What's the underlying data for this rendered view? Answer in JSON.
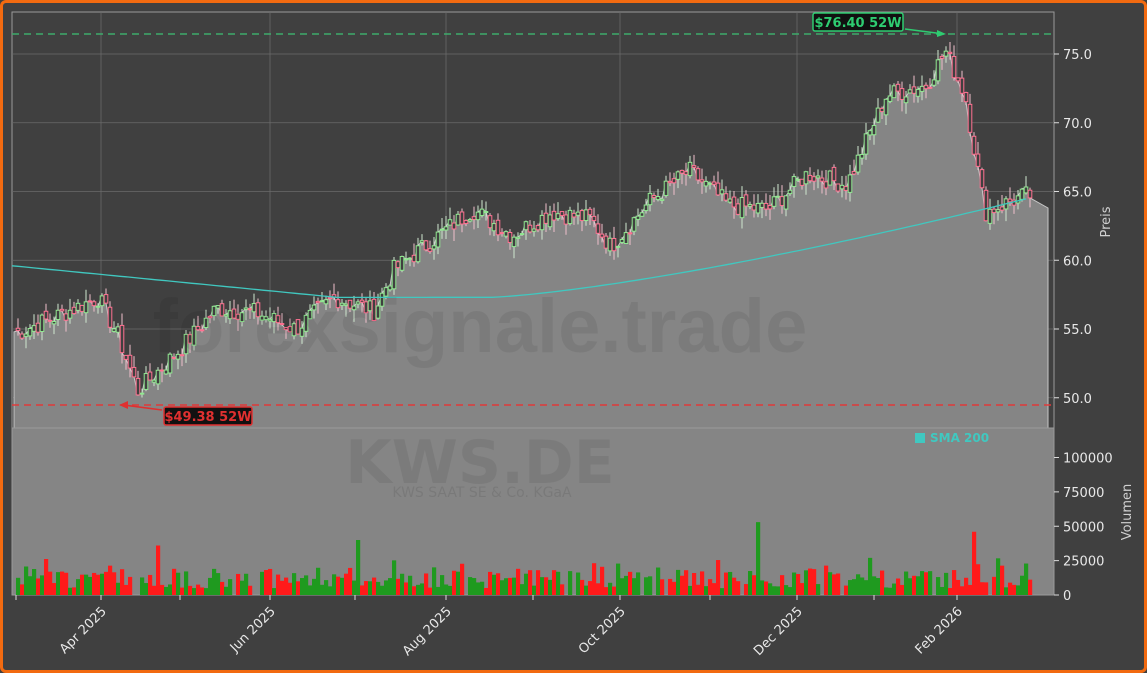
{
  "chart_data": [
    {
      "type": "candlestick",
      "title": "",
      "ticker": "KWS.DE",
      "company": "KWS SAAT SE & Co. KGaA",
      "watermark": "forexsignale.trade",
      "xlabel": "",
      "ylabel": "Preis",
      "ylim": [
        47.8,
        77.7
      ],
      "yticks": [
        "50.0",
        "55.0",
        "60.0",
        "65.0",
        "70.0",
        "75.0"
      ],
      "x_tick_labels": [
        "Apr 2025",
        "Jun 2025",
        "Aug 2025",
        "Oct 2025",
        "Dec 2025",
        "Feb 2026"
      ],
      "grid": true,
      "annotations": [
        {
          "label": "$76.40 52W",
          "value": 76.4,
          "type": "52-week high",
          "color": "#2ecc71"
        },
        {
          "label": "$49.38 52W",
          "value": 49.38,
          "type": "52-week low",
          "color": "#e03030"
        }
      ],
      "legend": [
        {
          "name": "SMA 200",
          "color": "#40c8c0"
        }
      ],
      "approx_close_series": {
        "dates": [
          "2025-03-03",
          "2025-03-17",
          "2025-03-31",
          "2025-04-07",
          "2025-04-14",
          "2025-04-28",
          "2025-05-12",
          "2025-05-26",
          "2025-06-09",
          "2025-06-23",
          "2025-07-07",
          "2025-07-14",
          "2025-07-28",
          "2025-08-11",
          "2025-08-25",
          "2025-09-08",
          "2025-09-22",
          "2025-09-29",
          "2025-10-13",
          "2025-10-27",
          "2025-11-10",
          "2025-11-24",
          "2025-12-08",
          "2025-12-22",
          "2026-01-05",
          "2026-01-19",
          "2026-01-26",
          "2026-02-02",
          "2026-02-09",
          "2026-02-23"
        ],
        "values": [
          54.8,
          56.0,
          57.3,
          54.5,
          50.5,
          53.3,
          56.5,
          56.2,
          55.0,
          57.3,
          56.3,
          59.3,
          61.5,
          63.7,
          61.8,
          63.5,
          63.0,
          61.0,
          64.3,
          66.5,
          64.0,
          63.7,
          66.3,
          65.5,
          72.0,
          72.7,
          75.2,
          72.0,
          63.5,
          64.7
        ]
      },
      "sma200": {
        "start": 59.6,
        "min": 57.3,
        "end": 64.5
      }
    },
    {
      "type": "bar",
      "title": "",
      "ylabel": "Volumen",
      "ylim": [
        0,
        120000
      ],
      "yticks": [
        "0",
        "25000",
        "50000",
        "75000",
        "100000"
      ],
      "colors": {
        "up": "#1f9a1f",
        "down": "#ff1a1a"
      },
      "notable_peaks": [
        {
          "approx_date": "2025-07-01",
          "value": 40000,
          "direction": "up"
        },
        {
          "approx_date": "2025-11-20",
          "value": 53000,
          "direction": "up"
        },
        {
          "approx_date": "2026-02-05",
          "value": 46000,
          "direction": "down"
        },
        {
          "approx_date": "2025-04-21",
          "value": 36000,
          "direction": "down"
        }
      ],
      "typical_range": [
        5000,
        25000
      ]
    }
  ],
  "labels": {
    "high_label": "$76.40 52W",
    "low_label": "$49.38 52W",
    "legend_sma": "SMA 200",
    "ticker": "KWS.DE",
    "company": "KWS SAAT SE & Co. KGaA",
    "watermark": "forexsignale.trade",
    "price_axis_title": "Preis",
    "volume_axis_title": "Volumen",
    "price_ticks": [
      "75.0",
      "70.0",
      "65.0",
      "60.0",
      "55.0",
      "50.0"
    ],
    "volume_ticks": [
      "100000",
      "75000",
      "50000",
      "25000",
      "0"
    ],
    "x_ticks": [
      "Apr 2025",
      "Jun 2025",
      "Aug 2025",
      "Oct 2025",
      "Dec 2025",
      "Feb 2026"
    ]
  },
  "colors": {
    "frame_border": "#f26a10",
    "background": "#404040",
    "area_fill": "#858585",
    "sma": "#40c8c0",
    "high_line": "#3daa6a",
    "low_line": "#e03a3a",
    "candle_up": "#90e890",
    "candle_down": "#ff7090",
    "volume_up": "#1f9a1f",
    "volume_down": "#ff1a1a"
  }
}
